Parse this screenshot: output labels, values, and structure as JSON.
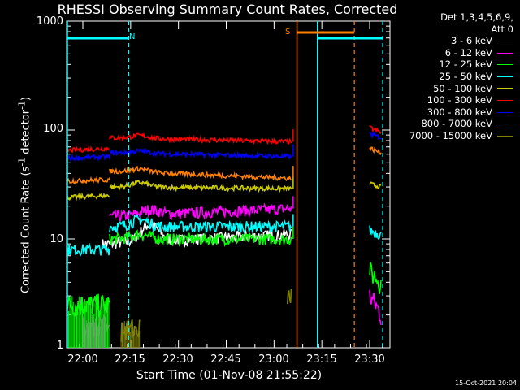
{
  "chart_data": {
    "type": "line",
    "title": "RHESSI Observing Summary Count Rates, Corrected",
    "xlabel": "Start Time (01-Nov-08 21:55:22)",
    "ylabel_main": "Corrected Count Rate (s",
    "ylabel_sup1": "-1",
    "ylabel_mid": " detector",
    "ylabel_sup2": "-1",
    "ylabel_end": ")",
    "yscale": "log",
    "ylim": [
      1,
      1000
    ],
    "yticks": [
      "1",
      "10",
      "100",
      "1000"
    ],
    "xlim_minutes": [
      21.9,
      33.2
    ],
    "xticks": [
      "22:00",
      "22:15",
      "22:30",
      "22:45",
      "23:00",
      "23:15",
      "23:30"
    ],
    "legend_header_1": "Det 1,3,4,5,6,9,",
    "legend_header_2": "Att 0",
    "markers": [
      {
        "label": "N",
        "color": "#00ffff"
      },
      {
        "label": "S",
        "color": "#ff8000"
      }
    ],
    "series": [
      {
        "name": "3 - 6 keV",
        "color": "#ffffff",
        "gap_level": 10,
        "segments": [
          {
            "t0": 22.1,
            "t1": 23.09,
            "v0": 9,
            "v1": 11,
            "peak": 15,
            "peak_t": 22.35
          }
        ]
      },
      {
        "name": "6 - 12 keV",
        "color": "#ff00ff",
        "segments": [
          {
            "t0": 22.0,
            "t1": 22.14,
            "v0": 1.6,
            "v1": 1.6,
            "peak": 1.6,
            "peak_t": 22.05
          },
          {
            "t0": 22.14,
            "t1": 23.09,
            "v0": 16,
            "v1": 19,
            "peak": 21,
            "peak_t": 22.35
          },
          {
            "t0": 23.5,
            "t1": 23.56,
            "v0": 3,
            "v1": 2,
            "peak": 3,
            "peak_t": 23.5
          }
        ]
      },
      {
        "name": "12 - 25 keV",
        "color": "#00ff00",
        "segments": [
          {
            "t0": 21.92,
            "t1": 22.14,
            "v0": 2.5,
            "v1": 2.5,
            "peak": 2.5,
            "peak_t": 22.0
          },
          {
            "t0": 22.14,
            "t1": 23.09,
            "v0": 10,
            "v1": 10,
            "peak": 11,
            "peak_t": 22.3
          },
          {
            "t0": 23.5,
            "t1": 23.56,
            "v0": 5,
            "v1": 4,
            "peak": 5,
            "peak_t": 23.5
          }
        ]
      },
      {
        "name": "25 - 50 keV",
        "color": "#00ffff",
        "segments": [
          {
            "t0": 21.92,
            "t1": 22.14,
            "v0": 8,
            "v1": 8,
            "peak": 8,
            "peak_t": 22.0
          },
          {
            "t0": 22.14,
            "t1": 23.09,
            "v0": 13,
            "v1": 13,
            "peak": 15,
            "peak_t": 22.3
          },
          {
            "t0": 23.5,
            "t1": 23.56,
            "v0": 12,
            "v1": 11,
            "peak": 12,
            "peak_t": 23.5
          }
        ]
      },
      {
        "name": "50 - 100 keV",
        "color": "#cccc00",
        "segments": [
          {
            "t0": 21.92,
            "t1": 22.14,
            "v0": 24,
            "v1": 25,
            "peak": 25,
            "peak_t": 22.1
          },
          {
            "t0": 22.14,
            "t1": 23.09,
            "v0": 30,
            "v1": 29,
            "peak": 33,
            "peak_t": 22.3
          },
          {
            "t0": 23.5,
            "t1": 23.56,
            "v0": 32,
            "v1": 30,
            "peak": 32,
            "peak_t": 23.5
          }
        ]
      },
      {
        "name": "100 - 300 keV",
        "color": "#ff0000",
        "segments": [
          {
            "t0": 21.92,
            "t1": 22.14,
            "v0": 65,
            "v1": 68,
            "peak": 68,
            "peak_t": 22.1
          },
          {
            "t0": 22.14,
            "t1": 23.09,
            "v0": 85,
            "v1": 78,
            "peak": 90,
            "peak_t": 22.3
          },
          {
            "t0": 23.5,
            "t1": 23.56,
            "v0": 105,
            "v1": 95,
            "peak": 105,
            "peak_t": 23.5
          }
        ]
      },
      {
        "name": "300 - 800 keV",
        "color": "#0000ff",
        "segments": [
          {
            "t0": 21.92,
            "t1": 22.14,
            "v0": 55,
            "v1": 57,
            "peak": 57,
            "peak_t": 22.1
          },
          {
            "t0": 22.14,
            "t1": 23.09,
            "v0": 62,
            "v1": 57,
            "peak": 65,
            "peak_t": 22.3
          },
          {
            "t0": 23.5,
            "t1": 23.56,
            "v0": 92,
            "v1": 85,
            "peak": 92,
            "peak_t": 23.5
          }
        ]
      },
      {
        "name": "800 - 7000 keV",
        "color": "#ff8000",
        "segments": [
          {
            "t0": 21.92,
            "t1": 22.14,
            "v0": 34,
            "v1": 35,
            "peak": 35,
            "peak_t": 22.1
          },
          {
            "t0": 22.14,
            "t1": 23.09,
            "v0": 42,
            "v1": 36,
            "peak": 45,
            "peak_t": 22.3
          },
          {
            "t0": 23.5,
            "t1": 23.56,
            "v0": 68,
            "v1": 62,
            "peak": 68,
            "peak_t": 23.5
          }
        ]
      },
      {
        "name": "7000 - 15000 keV",
        "color": "#808000",
        "segments": [
          {
            "t0": 22.2,
            "t1": 22.3,
            "v0": 1.5,
            "v1": 1.5,
            "peak": 1.5,
            "peak_t": 22.25
          },
          {
            "t0": 23.07,
            "t1": 23.09,
            "v0": 3,
            "v1": 3,
            "peak": 3,
            "peak_t": 23.08
          }
        ]
      }
    ],
    "timestamp": "15-Oct-2021 20:04"
  }
}
